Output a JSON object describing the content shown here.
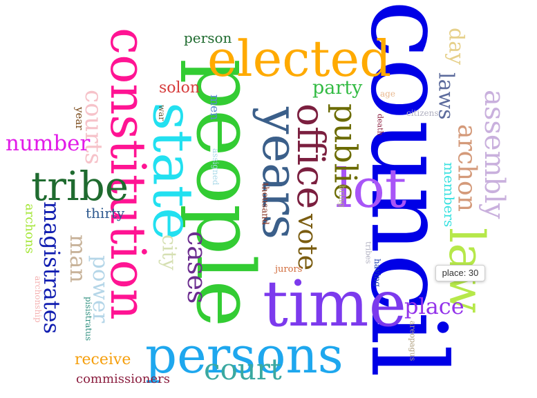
{
  "words": [
    {
      "text": "council",
      "color": "#0000e6"
    },
    {
      "text": "people",
      "color": "#33cc33"
    },
    {
      "text": "constitution",
      "color": "#ff1493"
    },
    {
      "text": "elected",
      "color": "#ffaa00"
    },
    {
      "text": "time",
      "color": "#7c3aed"
    },
    {
      "text": "persons",
      "color": "#1ea7ee"
    },
    {
      "text": "state",
      "color": "#22e0f0"
    },
    {
      "text": "lot",
      "color": "#a855f7"
    },
    {
      "text": "years",
      "color": "#3b5f8a"
    },
    {
      "text": "law",
      "color": "#b6e84a"
    },
    {
      "text": "tribe",
      "color": "#1f6b2f"
    },
    {
      "text": "office",
      "color": "#7b1f3f"
    },
    {
      "text": "court",
      "color": "#3aa8a0"
    },
    {
      "text": "public",
      "color": "#6b6b00"
    },
    {
      "text": "assembly",
      "color": "#c9b0dd"
    },
    {
      "text": "archon",
      "color": "#d49a7a"
    },
    {
      "text": "vote",
      "color": "#7a5c10"
    },
    {
      "text": "courts",
      "color": "#f6c2c9"
    },
    {
      "text": "number",
      "color": "#e11ce8"
    },
    {
      "text": "magistrates",
      "color": "#101db0"
    },
    {
      "text": "cases",
      "color": "#6b2d8f"
    },
    {
      "text": "place",
      "color": "#9333ea"
    },
    {
      "text": "day",
      "color": "#e6d08a"
    },
    {
      "text": "laws",
      "color": "#5c6b9c"
    },
    {
      "text": "power",
      "color": "#b5d6e8"
    },
    {
      "text": "man",
      "color": "#c8b39a"
    },
    {
      "text": "city",
      "color": "#d6e0b3"
    },
    {
      "text": "party",
      "color": "#33bb44"
    },
    {
      "text": "solon",
      "color": "#d63b3b"
    },
    {
      "text": "members",
      "color": "#39e1e0"
    },
    {
      "text": "receive",
      "color": "#f59e0b"
    },
    {
      "text": "commissioners",
      "color": "#8b1e3f"
    },
    {
      "text": "person",
      "color": "#1f6b2f"
    },
    {
      "text": "archons",
      "color": "#a3e635"
    },
    {
      "text": "thirty",
      "color": "#2f5a8f"
    },
    {
      "text": "men",
      "color": "#5b8ad0"
    },
    {
      "text": "year",
      "color": "#7a4a1a"
    },
    {
      "text": "war",
      "color": "#6b5a3a"
    },
    {
      "text": "assigned",
      "color": "#a8d8e8"
    },
    {
      "text": "thousand",
      "color": "#8b3a2a"
    },
    {
      "text": "bring",
      "color": "#b0b080"
    },
    {
      "text": "age",
      "color": "#e8b890"
    },
    {
      "text": "death",
      "color": "#8b1e3f"
    },
    {
      "text": "citizens",
      "color": "#b0b0c0"
    },
    {
      "text": "jurors",
      "color": "#d06a3a"
    },
    {
      "text": "tribes",
      "color": "#b0b0c0"
    },
    {
      "text": "having",
      "color": "#1e40af"
    },
    {
      "text": "pisistratus",
      "color": "#2f8f7f"
    },
    {
      "text": "archonship",
      "color": "#f4b0b0"
    },
    {
      "text": "areopagus",
      "color": "#b0a080"
    }
  ],
  "tooltip": {
    "text": "place: 30"
  }
}
